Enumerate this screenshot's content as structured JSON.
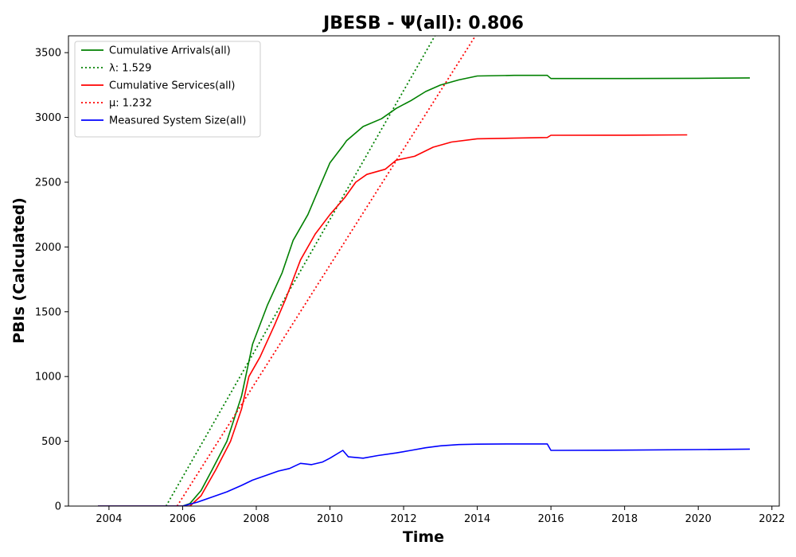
{
  "chart_data": {
    "type": "line",
    "title": "JBESB -  Ψ(all): 0.806",
    "xlabel": "Time",
    "ylabel": "PBIs (Calculated)",
    "xlim": [
      2002.9,
      2022.2
    ],
    "ylim": [
      0,
      3630
    ],
    "x_ticks": [
      2004,
      2006,
      2008,
      2010,
      2012,
      2014,
      2016,
      2018,
      2020,
      2022
    ],
    "y_ticks": [
      0,
      500,
      1000,
      1500,
      2000,
      2500,
      3000,
      3500
    ],
    "grid": false,
    "legend_position": "top-left",
    "series": [
      {
        "name": "Cumulative Arrivals(all)",
        "color": "#008000",
        "style": "solid",
        "x": [
          2003.7,
          2006.0,
          2006.2,
          2006.5,
          2006.8,
          2007.2,
          2007.6,
          2007.9,
          2008.3,
          2008.7,
          2009.0,
          2009.4,
          2009.7,
          2010.0,
          2010.35,
          2010.45,
          2010.9,
          2011.4,
          2011.8,
          2012.2,
          2012.6,
          2013.0,
          2013.5,
          2014.0,
          2015.0,
          2015.9,
          2016.0,
          2018.0,
          2020.0,
          2021.4
        ],
        "y": [
          0,
          0,
          20,
          120,
          280,
          500,
          850,
          1250,
          1550,
          1800,
          2050,
          2250,
          2450,
          2650,
          2780,
          2820,
          2930,
          2990,
          3070,
          3130,
          3200,
          3250,
          3290,
          3320,
          3325,
          3325,
          3300,
          3300,
          3302,
          3305
        ]
      },
      {
        "name": "λ: 1.529",
        "color": "#008000",
        "style": "dotted",
        "x": [
          2005.55,
          2012.85
        ],
        "y": [
          0,
          3630
        ]
      },
      {
        "name": "Cumulative Services(all)",
        "color": "#ff0000",
        "style": "solid",
        "x": [
          2003.7,
          2006.2,
          2006.5,
          2006.9,
          2007.3,
          2007.6,
          2007.8,
          2008.1,
          2008.5,
          2008.8,
          2009.2,
          2009.6,
          2010.0,
          2010.4,
          2010.7,
          2011.0,
          2011.5,
          2011.8,
          2012.3,
          2012.8,
          2013.3,
          2014.0,
          2015.0,
          2015.9,
          2016.0,
          2018.0,
          2019.7
        ],
        "y": [
          0,
          0,
          80,
          280,
          500,
          750,
          1000,
          1150,
          1400,
          1600,
          1900,
          2100,
          2250,
          2380,
          2500,
          2560,
          2600,
          2670,
          2700,
          2770,
          2810,
          2835,
          2840,
          2845,
          2862,
          2863,
          2865
        ]
      },
      {
        "name": "μ: 1.232",
        "color": "#ff0000",
        "style": "dotted",
        "x": [
          2005.85,
          2013.95
        ],
        "y": [
          0,
          3630
        ]
      },
      {
        "name": "Measured System Size(all)",
        "color": "#0000ff",
        "style": "solid",
        "x": [
          2003.7,
          2006.0,
          2006.4,
          2006.8,
          2007.2,
          2007.6,
          2007.9,
          2008.3,
          2008.6,
          2008.9,
          2009.2,
          2009.5,
          2009.8,
          2010.0,
          2010.35,
          2010.5,
          2010.9,
          2011.3,
          2011.8,
          2012.2,
          2012.6,
          2013.0,
          2013.5,
          2014.0,
          2015.0,
          2015.9,
          2016.0,
          2018.0,
          2020.0,
          2021.4
        ],
        "y": [
          0,
          0,
          30,
          70,
          110,
          160,
          200,
          240,
          270,
          290,
          330,
          320,
          340,
          370,
          430,
          380,
          370,
          390,
          410,
          430,
          450,
          465,
          475,
          478,
          480,
          480,
          430,
          432,
          436,
          440
        ]
      }
    ]
  }
}
